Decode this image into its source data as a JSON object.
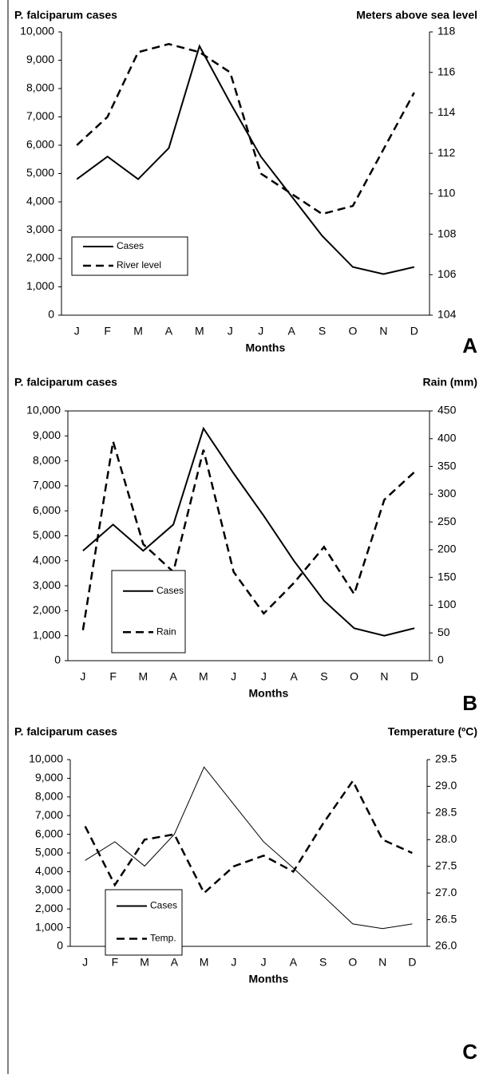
{
  "chart_data": [
    {
      "type": "line",
      "y_label": "P. falciparum cases",
      "y2_label": "Meters above sea level",
      "x_label": "Months",
      "panel_label": "A",
      "categories": [
        "J",
        "F",
        "M",
        "A",
        "M",
        "J",
        "J",
        "A",
        "S",
        "O",
        "N",
        "D"
      ],
      "series": [
        {
          "name": "Cases",
          "color": "#000000",
          "line_style": "solid",
          "width": 2,
          "values": [
            4800,
            5600,
            4800,
            5900,
            9500,
            7500,
            5600,
            4200,
            2800,
            1700,
            1450,
            1700
          ]
        },
        {
          "name": "River level",
          "color": "#000000",
          "line_style": "dashed",
          "width": 2.5,
          "axis": "y2",
          "values": [
            112.4,
            113.8,
            117,
            117.4,
            117,
            116,
            111,
            110,
            109,
            109.4,
            112.2,
            115
          ]
        }
      ],
      "ylim": [
        0,
        10000
      ],
      "yticks": [
        0,
        {
          "value": 1000,
          "label": "1,000"
        },
        {
          "value": 2000,
          "label": "2,000"
        },
        {
          "value": 3000,
          "label": "3,000"
        },
        {
          "value": 4000,
          "label": "4,000"
        },
        {
          "value": 5000,
          "label": "5,000"
        },
        {
          "value": 6000,
          "label": "6,000"
        },
        {
          "value": 7000,
          "label": "7,000"
        },
        {
          "value": 8000,
          "label": "8,000"
        },
        {
          "value": 9000,
          "label": "9,000"
        },
        {
          "value": 10000,
          "label": "10,000"
        }
      ],
      "y2lim": [
        104,
        118
      ],
      "y2ticks": [
        104,
        106,
        108,
        110,
        112,
        114,
        116,
        118
      ]
    },
    {
      "type": "line",
      "y_label": "P. falciparum cases",
      "y2_label": "Rain (mm)",
      "x_label": "Months",
      "panel_label": "B",
      "categories": [
        "J",
        "F",
        "M",
        "A",
        "M",
        "J",
        "J",
        "A",
        "S",
        "O",
        "N",
        "D"
      ],
      "series": [
        {
          "name": "Cases",
          "color": "#000000",
          "line_style": "solid",
          "width": 2,
          "values": [
            4400,
            5450,
            4400,
            5450,
            9300,
            7500,
            5800,
            4000,
            2400,
            1300,
            1000,
            1300
          ]
        },
        {
          "name": "Rain",
          "color": "#000000",
          "line_style": "dashed",
          "width": 2.5,
          "axis": "y2",
          "values": [
            55,
            395,
            210,
            160,
            380,
            160,
            85,
            140,
            205,
            120,
            290,
            340
          ]
        }
      ],
      "ylim": [
        0,
        10000
      ],
      "yticks": [
        0,
        {
          "value": 1000,
          "label": "1,000"
        },
        {
          "value": 2000,
          "label": "2,000"
        },
        {
          "value": 3000,
          "label": "3,000"
        },
        {
          "value": 4000,
          "label": "4,000"
        },
        {
          "value": 5000,
          "label": "5,000"
        },
        {
          "value": 6000,
          "label": "6,000"
        },
        {
          "value": 7000,
          "label": "7,000"
        },
        {
          "value": 8000,
          "label": "8,000"
        },
        {
          "value": 9000,
          "label": "9,000"
        },
        {
          "value": 10000,
          "label": "10,000"
        }
      ],
      "y2lim": [
        0,
        450
      ],
      "y2ticks": [
        0,
        50,
        100,
        150,
        200,
        250,
        300,
        350,
        400,
        450
      ]
    },
    {
      "type": "line",
      "y_label": "P. falciparum cases",
      "y2_label": "Temperature (ºC)",
      "x_label": "Months",
      "panel_label": "C",
      "categories": [
        "J",
        "F",
        "M",
        "A",
        "M",
        "J",
        "J",
        "A",
        "S",
        "O",
        "N",
        "D"
      ],
      "series": [
        {
          "name": "Cases",
          "color": "#000000",
          "line_style": "solid",
          "width": 1,
          "values": [
            4600,
            5600,
            4300,
            6000,
            9600,
            7600,
            5600,
            4200,
            2700,
            1200,
            950,
            1200
          ]
        },
        {
          "name": "Temp.",
          "color": "#000000",
          "line_style": "dashed",
          "width": 2.5,
          "axis": "y2",
          "values": [
            28.25,
            27.15,
            28.0,
            28.1,
            27.0,
            27.5,
            27.7,
            27.4,
            28.3,
            29.1,
            28.0,
            27.75
          ]
        }
      ],
      "ylim": [
        0,
        10000
      ],
      "yticks": [
        0,
        {
          "value": 1000,
          "label": "1,000"
        },
        {
          "value": 2000,
          "label": "2,000"
        },
        {
          "value": 3000,
          "label": "3,000"
        },
        {
          "value": 4000,
          "label": "4,000"
        },
        {
          "value": 5000,
          "label": "5,000"
        },
        {
          "value": 6000,
          "label": "6,000"
        },
        {
          "value": 7000,
          "label": "7,000"
        },
        {
          "value": 8000,
          "label": "8,000"
        },
        {
          "value": 9000,
          "label": "9,000"
        },
        {
          "value": 10000,
          "label": "10,000"
        }
      ],
      "y2lim": [
        26,
        29.5
      ],
      "y2ticks": [
        {
          "value": 26,
          "label": "26.0"
        },
        26.5,
        {
          "value": 27,
          "label": "27.0"
        },
        27.5,
        {
          "value": 28,
          "label": "28.0"
        },
        28.5,
        {
          "value": 29,
          "label": "29.0"
        },
        29.5
      ]
    }
  ]
}
